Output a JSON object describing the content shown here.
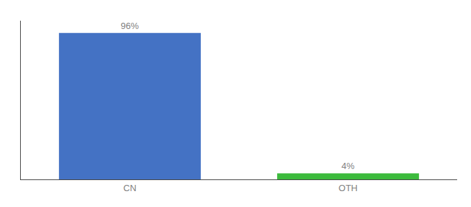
{
  "chart_data": {
    "type": "bar",
    "categories": [
      "CN",
      "OTH"
    ],
    "values": [
      96,
      4
    ],
    "value_labels": [
      "96%",
      "4%"
    ],
    "colors": [
      "#4472c4",
      "#3dbb3d"
    ],
    "ylim": [
      0,
      104
    ],
    "yticks": [],
    "grid": false,
    "data_labels": true,
    "tick_labels": "x"
  }
}
